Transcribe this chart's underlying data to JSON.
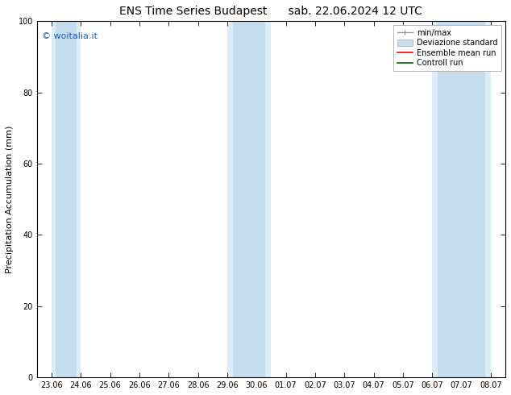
{
  "title_left": "ENS Time Series Budapest",
  "title_right": "sab. 22.06.2024 12 UTC",
  "ylabel": "Precipitation Accumulation (mm)",
  "ylim": [
    0,
    100
  ],
  "yticks": [
    0,
    20,
    40,
    60,
    80,
    100
  ],
  "x_labels": [
    "23.06",
    "24.06",
    "25.06",
    "26.06",
    "27.06",
    "28.06",
    "29.06",
    "30.06",
    "01.07",
    "02.07",
    "03.07",
    "04.07",
    "05.07",
    "06.07",
    "07.07",
    "08.07"
  ],
  "band_outer_color": "#daedf8",
  "band_inner_color": "#c5ddef",
  "mean_color": "#ff0000",
  "control_color": "#006400",
  "minmax_color": "#999999",
  "std_color": "#c5ddef",
  "watermark": "© woitalia.it",
  "watermark_color": "#1a5bc4",
  "title_fontsize": 10,
  "axis_label_fontsize": 8,
  "tick_fontsize": 7,
  "legend_fontsize": 7,
  "band_positions": [
    {
      "outer": [
        0,
        1
      ],
      "inner": [
        0.15,
        0.85
      ]
    },
    {
      "outer": [
        6,
        7.5
      ],
      "inner": [
        6.2,
        7.3
      ]
    },
    {
      "outer": [
        13,
        15
      ],
      "inner": [
        13.2,
        14.8
      ]
    }
  ]
}
